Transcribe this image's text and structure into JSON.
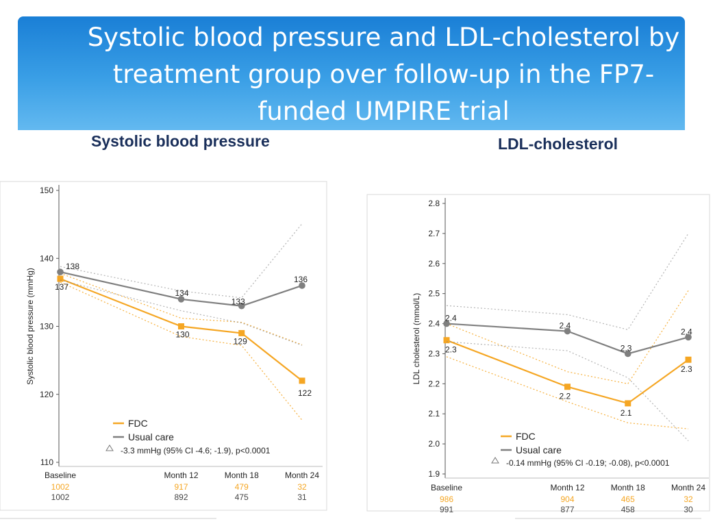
{
  "slide": {
    "title": "Systolic blood pressure and LDL-cholesterol by\ntreatment group over follow-up in the FP7-\nfunded UMPIRE trial",
    "colors": {
      "title_bar": "#2a8fe0",
      "fdc": "#f5a623",
      "usual": "#7f7f7f",
      "subhead": "#1a2f5a"
    }
  },
  "chart_data": [
    {
      "type": "line",
      "heading": "Systolic blood pressure",
      "ylabel": "Systolic blood pressure (mmHg)",
      "ylim": [
        110,
        150
      ],
      "yticks": [
        110,
        120,
        130,
        140,
        150
      ],
      "categories": [
        "Baseline",
        "Month 12",
        "Month 18",
        "Month 24"
      ],
      "x": [
        0,
        12,
        18,
        24
      ],
      "series": [
        {
          "name": "FDC",
          "color": "#f5a623",
          "marker": "square",
          "values": [
            137,
            130,
            129,
            122
          ],
          "labels": [
            "137",
            "130",
            "129",
            "122"
          ],
          "ci_low": [
            136.5,
            128.5,
            127.2,
            116.2
          ],
          "ci_high": [
            137.8,
            131.2,
            130.6,
            127.3
          ],
          "n": [
            "1002",
            "917",
            "479",
            "32"
          ]
        },
        {
          "name": "Usual care",
          "color": "#7f7f7f",
          "marker": "circle",
          "values": [
            138,
            134,
            133,
            136
          ],
          "labels": [
            "138",
            "134",
            "133",
            "136"
          ],
          "ci_low": [
            136.8,
            132.3,
            130.5,
            127.2
          ],
          "ci_high": [
            138.8,
            135.2,
            134.2,
            145.1
          ],
          "n": [
            "1002",
            "892",
            "475",
            "31"
          ]
        }
      ],
      "annotation": "-3.3 mmHg (95% CI -4.6; -1.9), p<0.0001",
      "grid": false,
      "legend_position": "bottom-left"
    },
    {
      "type": "line",
      "heading": "LDL-cholesterol",
      "ylabel": "LDL cholesterol (mmol/L)",
      "ylim": [
        1.9,
        2.8
      ],
      "yticks": [
        "1.9",
        "2.0",
        "2.1",
        "2.2",
        "2.3",
        "2.4",
        "2.5",
        "2.6",
        "2.7",
        "2.8"
      ],
      "categories": [
        "Baseline",
        "Month 12",
        "Month 18",
        "Month 24"
      ],
      "x": [
        0,
        12,
        18,
        24
      ],
      "series": [
        {
          "name": "FDC",
          "color": "#f5a623",
          "marker": "square",
          "values": [
            2.345,
            2.19,
            2.135,
            2.28
          ],
          "labels": [
            "2.3",
            "2.2",
            "2.1",
            "2.3"
          ],
          "ci_low": [
            2.29,
            2.14,
            2.07,
            2.05
          ],
          "ci_high": [
            2.4,
            2.24,
            2.2,
            2.51
          ],
          "n": [
            "986",
            "904",
            "465",
            "32"
          ]
        },
        {
          "name": "Usual care",
          "color": "#7f7f7f",
          "marker": "circle",
          "values": [
            2.4,
            2.375,
            2.3,
            2.355
          ],
          "labels": [
            "2.4",
            "2.4",
            "2.3",
            "2.4"
          ],
          "ci_low": [
            2.34,
            2.31,
            2.22,
            2.01
          ],
          "ci_high": [
            2.46,
            2.43,
            2.38,
            2.7
          ],
          "n": [
            "991",
            "877",
            "458",
            "30"
          ]
        }
      ],
      "annotation": "-0.14 mmHg (95% CI -0.19; -0.08), p<0.0001",
      "grid": false,
      "legend_position": "bottom-left"
    }
  ]
}
